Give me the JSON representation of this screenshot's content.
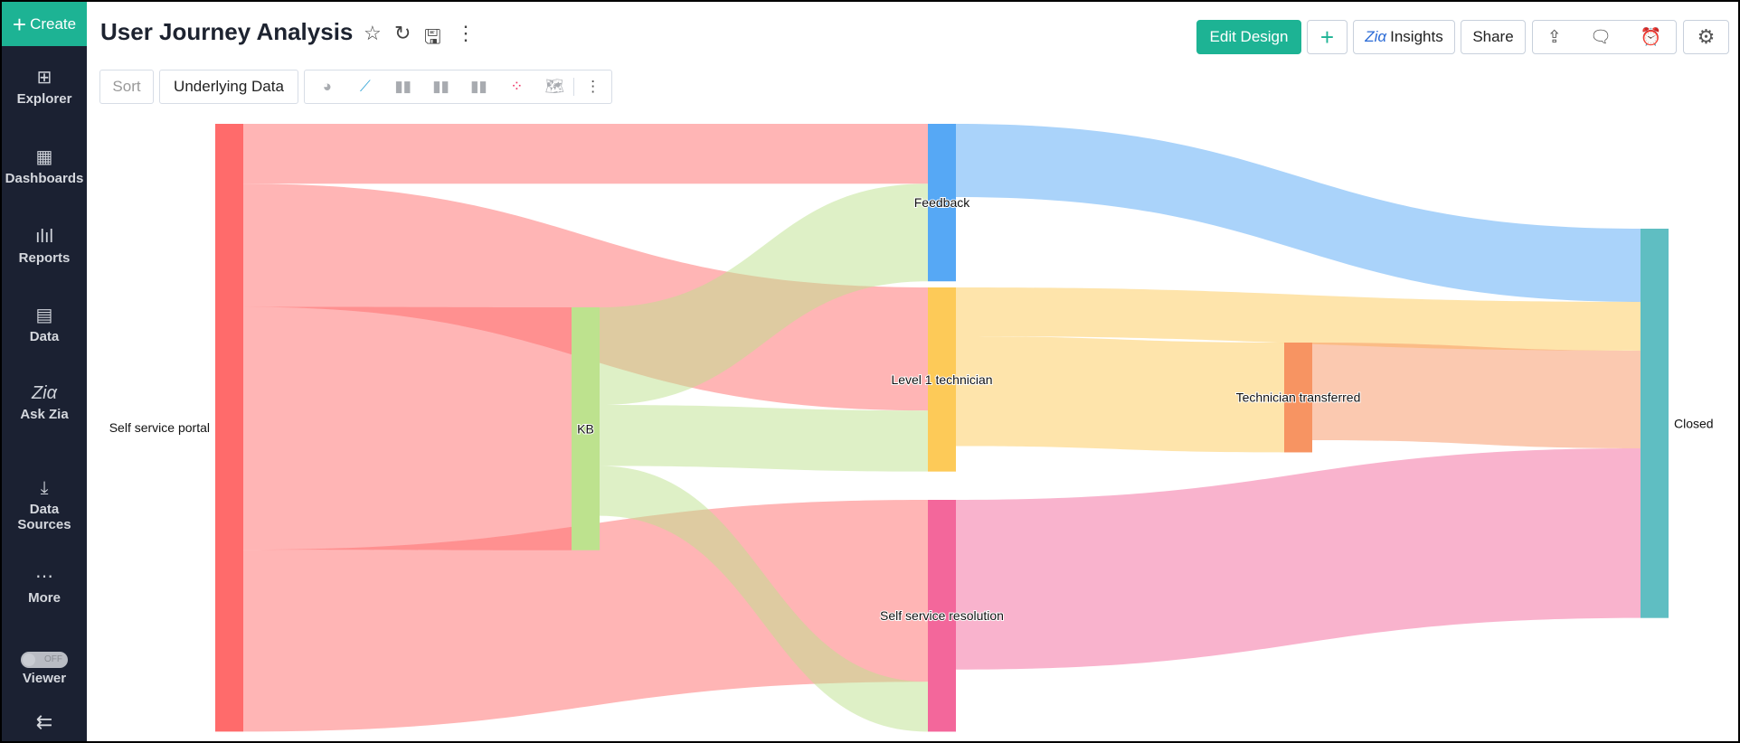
{
  "sidebar": {
    "create_label": "Create",
    "items": [
      {
        "label": "Explorer",
        "icon": "explorer-icon"
      },
      {
        "label": "Dashboards",
        "icon": "dashboards-icon"
      },
      {
        "label": "Reports",
        "icon": "reports-icon"
      },
      {
        "label": "Data",
        "icon": "data-table-icon"
      },
      {
        "label": "Ask Zia",
        "icon": "zia-icon"
      },
      {
        "label": "Data Sources",
        "icon": "data-sources-icon"
      },
      {
        "label": "More",
        "icon": "more-icon"
      },
      {
        "label": "Viewer",
        "icon": "toggle-icon",
        "toggle": "OFF"
      }
    ]
  },
  "header": {
    "title": "User Journey Analysis",
    "edit_design": "Edit Design",
    "insights": "Insights",
    "share": "Share"
  },
  "toolbar": {
    "sort": "Sort",
    "underlying_data": "Underlying Data"
  },
  "colors": {
    "accent": "#1db394",
    "sidebar": "#1b2132"
  },
  "chart_data": {
    "type": "sankey",
    "nodes": [
      {
        "name": "Self service portal",
        "color": "#ff6b6b"
      },
      {
        "name": "KB",
        "color": "#bde28e"
      },
      {
        "name": "Feedback",
        "color": "#56a8f5"
      },
      {
        "name": "Level 1 technician",
        "color": "#fdca58"
      },
      {
        "name": "Self service resolution",
        "color": "#f3679b"
      },
      {
        "name": "Technician transferred",
        "color": "#f79462"
      },
      {
        "name": "Closed",
        "color": "#5fbec2"
      }
    ],
    "links": [
      {
        "source": "Self service portal",
        "target": "Feedback",
        "value": 54
      },
      {
        "source": "Self service portal",
        "target": "Level 1 technician",
        "value": 111
      },
      {
        "source": "Self service portal",
        "target": "KB",
        "value": 219
      },
      {
        "source": "Self service portal",
        "target": "Self service resolution",
        "value": 164
      },
      {
        "source": "KB",
        "target": "Feedback",
        "value": 88
      },
      {
        "source": "KB",
        "target": "Level 1 technician",
        "value": 55
      },
      {
        "source": "KB",
        "target": "Self service resolution",
        "value": 45
      },
      {
        "source": "Feedback",
        "target": "Closed",
        "value": 66
      },
      {
        "source": "Level 1 technician",
        "target": "Closed",
        "value": 44
      },
      {
        "source": "Level 1 technician",
        "target": "Technician transferred",
        "value": 99
      },
      {
        "source": "Technician transferred",
        "target": "Closed",
        "value": 88
      },
      {
        "source": "Self service resolution",
        "target": "Closed",
        "value": 153
      }
    ]
  }
}
